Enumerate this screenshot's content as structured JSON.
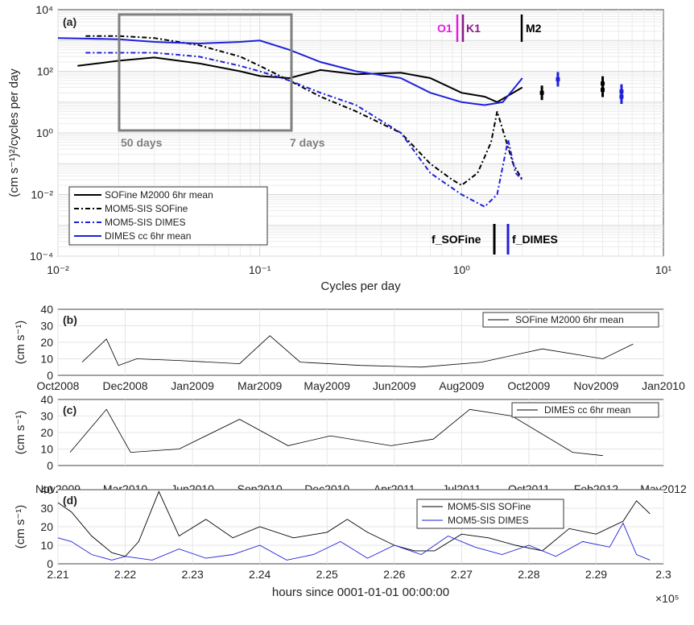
{
  "figure": {
    "panel_a": {
      "panel_label": "(a)",
      "ylabel": "(cm s⁻¹)²/cycles per day",
      "xlabel": "Cycles per day",
      "xticks": [
        "10⁻²",
        "10⁻¹",
        "10⁰",
        "10¹"
      ],
      "yticks": [
        "10⁴",
        "10²",
        "10⁰",
        "10⁻²",
        "10⁻⁴"
      ],
      "box_left_label": "50 days",
      "box_right_label": "7 days",
      "tide_labels": [
        "O1",
        "K1",
        "M2"
      ],
      "inertial_labels": [
        "f_SOFine",
        "f_DIMES"
      ],
      "legend": [
        "SOFine M2000 6hr mean",
        "MOM5-SIS SOFine",
        "MOM5-SIS DIMES",
        "DIMES cc 6hr mean"
      ]
    },
    "panel_b": {
      "panel_label": "(b)",
      "ylabel": "(cm s⁻¹)",
      "yticks": [
        "0",
        "10",
        "20",
        "30",
        "40"
      ],
      "xticks": [
        "Oct2008",
        "Dec2008",
        "Jan2009",
        "Mar2009",
        "May2009",
        "Jun2009",
        "Aug2009",
        "Oct2009",
        "Nov2009",
        "Jan2010"
      ],
      "legend": [
        "SOFine M2000 6hr mean"
      ]
    },
    "panel_c": {
      "panel_label": "(c)",
      "ylabel": "(cm s⁻¹)",
      "yticks": [
        "0",
        "10",
        "20",
        "30",
        "40"
      ],
      "xticks": [
        "Nov2009",
        "Mar2010",
        "Jun2010",
        "Sep2010",
        "Dec2010",
        "Apr2011",
        "Jul2011",
        "Oct2011",
        "Feb2012",
        "May2012"
      ],
      "legend": [
        "DIMES cc 6hr mean"
      ]
    },
    "panel_d": {
      "panel_label": "(d)",
      "ylabel": "(cm s⁻¹)",
      "yticks": [
        "0",
        "10",
        "20",
        "30",
        "40"
      ],
      "xticks": [
        "2.21",
        "2.22",
        "2.23",
        "2.24",
        "2.25",
        "2.26",
        "2.27",
        "2.28",
        "2.29",
        "2.3"
      ],
      "xlabel": "hours since 0001-01-01 00:00:00",
      "xexp": "×10⁵",
      "legend": [
        "MOM5-SIS SOFine",
        "MOM5-SIS DIMES"
      ]
    }
  },
  "colors": {
    "black": "#000000",
    "blue": "#1f1fdc",
    "magenta": "#e619e6",
    "purple": "#8a1a8a",
    "gray_box": "#7f7f7f"
  },
  "chart_data": [
    {
      "type": "line",
      "xscale": "log",
      "yscale": "log",
      "xlim": [
        0.01,
        10
      ],
      "ylim": [
        0.0001,
        10000
      ],
      "series": [
        {
          "name": "SOFine M2000 6hr mean",
          "x": [
            0.0125,
            0.02,
            0.03,
            0.05,
            0.08,
            0.1,
            0.14,
            0.2,
            0.3,
            0.5,
            0.7,
            1.0,
            1.3,
            1.5,
            2.0
          ],
          "y": [
            150,
            220,
            280,
            180,
            100,
            70,
            60,
            110,
            80,
            90,
            60,
            20,
            15,
            10,
            30
          ]
        },
        {
          "name": "MOM5-SIS SOFine",
          "x": [
            0.0137,
            0.02,
            0.03,
            0.05,
            0.08,
            0.1,
            0.14,
            0.2,
            0.3,
            0.5,
            0.7,
            0.9,
            1.0,
            1.2,
            1.4,
            1.5,
            1.8,
            2.0
          ],
          "y": [
            1400,
            1400,
            1200,
            700,
            300,
            150,
            50,
            15,
            5,
            1.0,
            0.1,
            0.03,
            0.02,
            0.05,
            0.5,
            5,
            0.1,
            0.03
          ]
        },
        {
          "name": "MOM5-SIS DIMES",
          "x": [
            0.0137,
            0.02,
            0.03,
            0.05,
            0.08,
            0.1,
            0.14,
            0.2,
            0.3,
            0.5,
            0.7,
            1.0,
            1.3,
            1.5,
            1.7,
            1.85,
            2.0
          ],
          "y": [
            400,
            400,
            400,
            300,
            150,
            100,
            50,
            20,
            8,
            1.0,
            0.05,
            0.01,
            0.004,
            0.01,
            0.6,
            0.05,
            0.03
          ]
        },
        {
          "name": "DIMES cc 6hr mean",
          "x": [
            0.01,
            0.02,
            0.03,
            0.05,
            0.08,
            0.1,
            0.14,
            0.2,
            0.3,
            0.5,
            0.7,
            1.0,
            1.3,
            1.6,
            2.0
          ],
          "y": [
            1200,
            1100,
            900,
            800,
            900,
            1000,
            500,
            200,
            100,
            60,
            20,
            10,
            8,
            10,
            60
          ]
        }
      ],
      "extra_points": [
        {
          "series": "SOFine M2000 6hr mean",
          "x": [
            2.5,
            5.0
          ],
          "y": [
            20,
            25
          ]
        },
        {
          "series": "DIMES cc 6hr mean",
          "x": [
            3.0,
            6.2
          ],
          "y": [
            55,
            15
          ]
        },
        {
          "series": "MOM5-SIS SOFine",
          "x": [
            5.0
          ],
          "y": [
            40
          ]
        },
        {
          "series": "MOM5-SIS DIMES",
          "x": [
            6.2
          ],
          "y": [
            22
          ]
        }
      ],
      "box": {
        "x": [
          0.0204,
          0.143
        ],
        "y": [
          1.0,
          10000
        ]
      },
      "tides": {
        "O1": 0.93,
        "K1": 1.0,
        "M2": 1.93
      },
      "inertial": {
        "f_SOFine": 1.52,
        "f_DIMES": 1.7
      }
    },
    {
      "type": "line",
      "title": "SOFine M2000 6hr mean",
      "ylim": [
        0,
        40
      ],
      "x_range": [
        "Oct2008",
        "Jan2010"
      ],
      "series": [
        {
          "name": "SOFine M2000 6hr mean",
          "x": [
            0.04,
            0.08,
            0.1,
            0.13,
            0.2,
            0.3,
            0.35,
            0.4,
            0.5,
            0.6,
            0.7,
            0.8,
            0.9,
            0.95
          ],
          "y": [
            8,
            22,
            6,
            10,
            9,
            7,
            24,
            8,
            6,
            5,
            8,
            16,
            10,
            19
          ]
        }
      ]
    },
    {
      "type": "line",
      "title": "DIMES cc 6hr mean",
      "ylim": [
        0,
        40
      ],
      "x_range": [
        "Nov2009",
        "May2012"
      ],
      "series": [
        {
          "name": "DIMES cc 6hr mean",
          "x": [
            0.02,
            0.08,
            0.12,
            0.2,
            0.3,
            0.38,
            0.45,
            0.55,
            0.62,
            0.68,
            0.75,
            0.85,
            0.9
          ],
          "y": [
            8,
            34,
            8,
            10,
            28,
            12,
            18,
            12,
            16,
            34,
            30,
            8,
            6
          ]
        }
      ]
    },
    {
      "type": "line",
      "title": "",
      "xlim": [
        2.21,
        2.3
      ],
      "ylim": [
        0,
        40
      ],
      "series": [
        {
          "name": "MOM5-SIS SOFine",
          "x": [
            2.21,
            2.212,
            2.215,
            2.218,
            2.22,
            2.222,
            2.225,
            2.228,
            2.232,
            2.236,
            2.24,
            2.245,
            2.25,
            2.253,
            2.256,
            2.26,
            2.263,
            2.266,
            2.27,
            2.274,
            2.278,
            2.282,
            2.286,
            2.29,
            2.294,
            2.296,
            2.298
          ],
          "y": [
            33,
            28,
            15,
            6,
            4,
            12,
            39,
            15,
            24,
            14,
            20,
            14,
            17,
            24,
            17,
            10,
            7,
            7,
            16,
            14,
            10,
            7,
            19,
            16,
            23,
            34,
            27
          ]
        },
        {
          "name": "MOM5-SIS DIMES",
          "x": [
            2.21,
            2.212,
            2.215,
            2.218,
            2.22,
            2.224,
            2.228,
            2.232,
            2.236,
            2.24,
            2.244,
            2.248,
            2.252,
            2.256,
            2.26,
            2.264,
            2.268,
            2.272,
            2.276,
            2.28,
            2.284,
            2.288,
            2.292,
            2.294,
            2.296,
            2.298
          ],
          "y": [
            14,
            12,
            5,
            2,
            4,
            2,
            8,
            3,
            5,
            10,
            2,
            5,
            12,
            3,
            10,
            5,
            15,
            9,
            5,
            10,
            4,
            12,
            9,
            22,
            5,
            2
          ]
        }
      ]
    }
  ]
}
